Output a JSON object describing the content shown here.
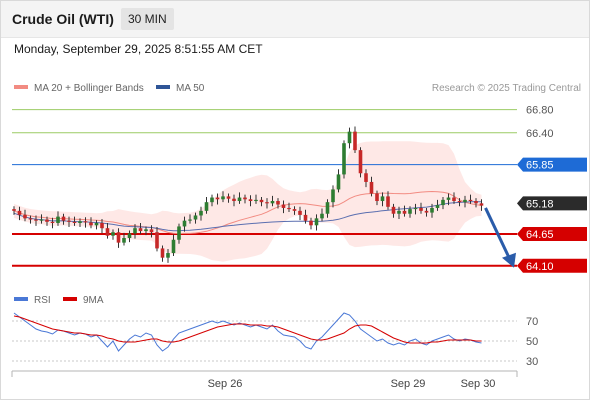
{
  "header": {
    "title": "Crude Oil (WTI)",
    "timeframe": "30 MIN",
    "timestamp": "Monday, September 29, 2025 8:51:55 AM CET"
  },
  "chart_data": [
    {
      "type": "candlestick",
      "legend": [
        {
          "label": "MA 20 + Bollinger Bands",
          "color": "#f28b82"
        },
        {
          "label": "MA 50",
          "color": "#2f5597"
        }
      ],
      "credit": "Research © 2025 Trading Central",
      "ylim": [
        63.75,
        66.95
      ],
      "ticks_x": [
        "Sep 26",
        "Sep 29",
        "Sep 30"
      ],
      "levels": [
        {
          "label": "66.80",
          "value": 66.8,
          "color": "#9ccc65",
          "style": "plain"
        },
        {
          "label": "66.40",
          "value": 66.4,
          "color": "#9ccc65",
          "style": "plain"
        },
        {
          "label": "65.85",
          "value": 65.85,
          "color": "#1e6bd6",
          "style": "tag-blue"
        },
        {
          "label": "65.18",
          "value": 65.18,
          "color": "#333333",
          "style": "tag-dark"
        },
        {
          "label": "64.65",
          "value": 64.65,
          "color": "#d50000",
          "style": "tag-red"
        },
        {
          "label": "64.10",
          "value": 64.1,
          "color": "#d50000",
          "style": "tag-red"
        }
      ],
      "forecast_arrow": {
        "from": 65.1,
        "to": 64.1,
        "color": "#2a5caa"
      },
      "closes": [
        65.05,
        64.98,
        64.92,
        64.9,
        64.88,
        64.9,
        64.86,
        64.84,
        64.95,
        64.88,
        64.86,
        64.84,
        64.87,
        64.85,
        64.8,
        64.84,
        64.75,
        64.62,
        64.68,
        64.5,
        64.58,
        64.66,
        64.75,
        64.7,
        64.73,
        64.68,
        64.4,
        64.24,
        64.32,
        64.55,
        64.78,
        64.88,
        64.9,
        64.97,
        65.05,
        65.2,
        65.28,
        65.25,
        65.3,
        65.26,
        65.22,
        65.28,
        65.25,
        65.22,
        65.24,
        65.2,
        65.18,
        65.22,
        65.16,
        65.1,
        65.08,
        65.05,
        64.98,
        64.88,
        64.8,
        64.92,
        65.0,
        65.2,
        65.42,
        65.68,
        66.22,
        66.42,
        66.1,
        65.7,
        65.55,
        65.35,
        65.22,
        65.3,
        65.12,
        65.0,
        65.05,
        65.0,
        65.08,
        65.1,
        65.05,
        65.02,
        65.1,
        65.15,
        65.24,
        65.28,
        65.22,
        65.2,
        65.24,
        65.22,
        65.18,
        65.14
      ]
    },
    {
      "type": "line",
      "legend": [
        {
          "label": "RSI",
          "color": "#4a78d6"
        },
        {
          "label": "9MA",
          "color": "#d50000"
        }
      ],
      "ylim": [
        24,
        82
      ],
      "yticks": [
        "70",
        "50",
        "30"
      ],
      "series": [
        {
          "name": "RSI",
          "values": [
            78,
            74,
            70,
            66,
            62,
            60,
            59,
            57,
            61,
            60,
            58,
            56,
            58,
            57,
            54,
            56,
            50,
            44,
            50,
            40,
            46,
            52,
            56,
            54,
            58,
            56,
            46,
            40,
            44,
            52,
            58,
            60,
            62,
            64,
            66,
            68,
            70,
            68,
            70,
            68,
            66,
            68,
            66,
            64,
            66,
            64,
            62,
            66,
            60,
            56,
            55,
            54,
            50,
            44,
            42,
            50,
            54,
            60,
            66,
            72,
            78,
            76,
            70,
            62,
            58,
            54,
            50,
            52,
            48,
            46,
            48,
            46,
            50,
            52,
            48,
            46,
            50,
            52,
            54,
            56,
            52,
            50,
            52,
            51,
            49,
            48
          ]
        },
        {
          "name": "9MA",
          "values": [
            75,
            74,
            72,
            70,
            68,
            66,
            64,
            62,
            61,
            60,
            59,
            58,
            58,
            57,
            56,
            56,
            55,
            53,
            52,
            50,
            49,
            49,
            49,
            50,
            51,
            52,
            52,
            50,
            49,
            49,
            50,
            52,
            54,
            56,
            58,
            60,
            62,
            64,
            65,
            66,
            67,
            67,
            67,
            66,
            66,
            66,
            65,
            65,
            64,
            62,
            60,
            58,
            56,
            54,
            52,
            51,
            51,
            52,
            54,
            56,
            58,
            62,
            65,
            66,
            66,
            65,
            62,
            59,
            56,
            53,
            51,
            49,
            48,
            48,
            48,
            48,
            49,
            49,
            50,
            51,
            51,
            51,
            51,
            51,
            50,
            50
          ]
        }
      ]
    }
  ]
}
